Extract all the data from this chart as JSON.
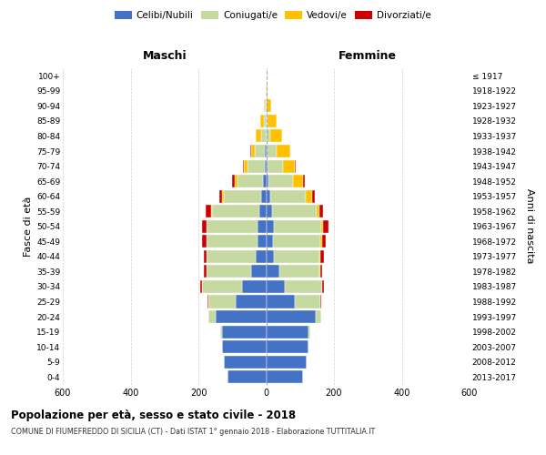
{
  "age_groups": [
    "0-4",
    "5-9",
    "10-14",
    "15-19",
    "20-24",
    "25-29",
    "30-34",
    "35-39",
    "40-44",
    "45-49",
    "50-54",
    "55-59",
    "60-64",
    "65-69",
    "70-74",
    "75-79",
    "80-84",
    "85-89",
    "90-94",
    "95-99",
    "100+"
  ],
  "birth_years": [
    "2013-2017",
    "2008-2012",
    "2003-2007",
    "1998-2002",
    "1993-1997",
    "1988-1992",
    "1983-1987",
    "1978-1982",
    "1973-1977",
    "1968-1972",
    "1963-1967",
    "1958-1962",
    "1953-1957",
    "1948-1952",
    "1943-1947",
    "1938-1942",
    "1933-1937",
    "1928-1932",
    "1923-1927",
    "1918-1922",
    "≤ 1917"
  ],
  "male_celibi": [
    115,
    125,
    130,
    130,
    150,
    90,
    70,
    45,
    30,
    25,
    25,
    20,
    15,
    10,
    5,
    3,
    0,
    0,
    0,
    0,
    0
  ],
  "male_coniugati": [
    0,
    0,
    0,
    5,
    20,
    80,
    120,
    130,
    145,
    150,
    150,
    140,
    110,
    75,
    50,
    30,
    15,
    8,
    3,
    0,
    0
  ],
  "male_vedovi": [
    0,
    0,
    0,
    0,
    0,
    0,
    0,
    0,
    0,
    2,
    2,
    3,
    5,
    8,
    10,
    12,
    15,
    10,
    5,
    2,
    0
  ],
  "male_divorziati": [
    0,
    0,
    0,
    0,
    0,
    3,
    5,
    8,
    10,
    12,
    12,
    15,
    8,
    8,
    3,
    3,
    2,
    0,
    0,
    0,
    0
  ],
  "female_celibi": [
    110,
    120,
    125,
    125,
    145,
    85,
    55,
    38,
    22,
    20,
    22,
    18,
    12,
    8,
    4,
    2,
    0,
    0,
    0,
    0,
    0
  ],
  "female_coniugati": [
    0,
    0,
    0,
    5,
    18,
    75,
    110,
    120,
    135,
    140,
    140,
    130,
    105,
    70,
    45,
    28,
    12,
    5,
    2,
    0,
    0
  ],
  "female_vedovi": [
    0,
    0,
    0,
    0,
    0,
    0,
    0,
    2,
    3,
    5,
    5,
    8,
    18,
    30,
    35,
    40,
    35,
    25,
    12,
    5,
    2
  ],
  "female_divorziati": [
    0,
    0,
    0,
    0,
    0,
    2,
    5,
    5,
    10,
    12,
    18,
    12,
    8,
    5,
    3,
    0,
    0,
    0,
    0,
    0,
    0
  ],
  "color_celibi": "#4472c4",
  "color_coniugati": "#c5d9a0",
  "color_vedovi": "#ffc000",
  "color_divorziati": "#cc0000",
  "title": "Popolazione per età, sesso e stato civile - 2018",
  "subtitle": "COMUNE DI FIUMEFREDDO DI SICILIA (CT) - Dati ISTAT 1° gennaio 2018 - Elaborazione TUTTITALIA.IT",
  "xlabel_left": "Maschi",
  "xlabel_right": "Femmine",
  "ylabel": "Fasce di età",
  "ylabel_right": "Anni di nascita",
  "xlim": 600,
  "background_color": "#ffffff",
  "grid_color": "#d0d0d0"
}
